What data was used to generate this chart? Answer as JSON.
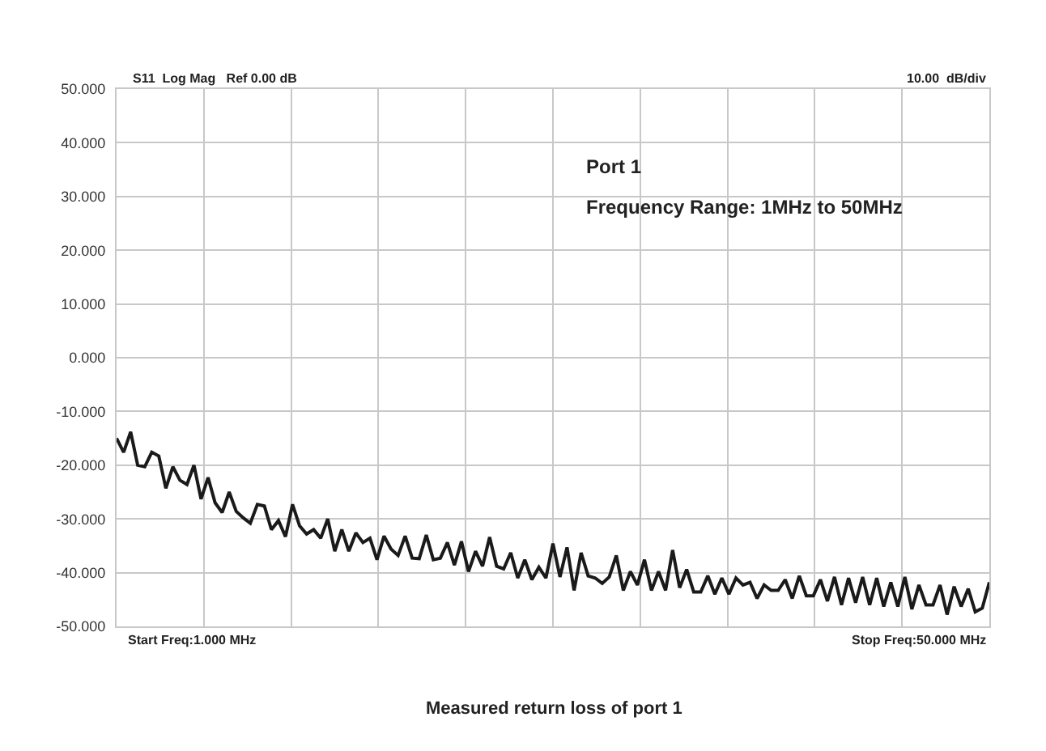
{
  "chart_data": {
    "type": "line",
    "annotations": [
      "S11  Log Mag   Ref 0.00 dB",
      "10.00  dB/div",
      "Port 1",
      "Frequency Range: 1MHz to 50MHz",
      "Start Freq:1.000 MHz",
      "Stop Freq:50.000 MHz",
      "Measured return loss of port 1"
    ],
    "categories": [
      null,
      null,
      null,
      null,
      null,
      null,
      null,
      null,
      null,
      null,
      null,
      null,
      null,
      null,
      null,
      null,
      null,
      null,
      null,
      null,
      null,
      null,
      null,
      null,
      null,
      null,
      null,
      null,
      null,
      null,
      null,
      null,
      null,
      null,
      null,
      null,
      null,
      null,
      null,
      null,
      null,
      null,
      null,
      null,
      null,
      null,
      null,
      null,
      null,
      null,
      null,
      null,
      null,
      null,
      null,
      null,
      null,
      null,
      null,
      null,
      null,
      null,
      null,
      null,
      null,
      null,
      null,
      null,
      null,
      null,
      null,
      null,
      null,
      null,
      null,
      null,
      null,
      null,
      null,
      null,
      null,
      null,
      null,
      null,
      null,
      null,
      null,
      null,
      null,
      null,
      null,
      null,
      null,
      null,
      null,
      null,
      null,
      null,
      null,
      null,
      null,
      null,
      null,
      null,
      null,
      null,
      null,
      null,
      null,
      null,
      null,
      null,
      null,
      null,
      null,
      null,
      null,
      null,
      null,
      null,
      null,
      null,
      null,
      null,
      null
    ],
    "ylim": [
      -50,
      50
    ],
    "yticks": [
      {
        "value": -50,
        "label": "-50.000"
      },
      {
        "value": -40,
        "label": "-40.000"
      },
      {
        "value": -30,
        "label": "-30.000"
      },
      {
        "value": -20,
        "label": "-20.000"
      },
      {
        "value": -10,
        "label": "-10.000"
      },
      {
        "value": 0,
        "label": "0.000"
      },
      {
        "value": 10,
        "label": "10.000"
      },
      {
        "value": 20,
        "label": "20.000"
      },
      {
        "value": 30,
        "label": "30.000"
      },
      {
        "value": 40,
        "label": "40.000"
      },
      {
        "value": 50,
        "label": "50.000"
      }
    ],
    "tick_labels": "y",
    "grid": true,
    "marker": "none",
    "line_style": "solid",
    "series": [
      {
        "color": "#1a1a1a",
        "values": [
          -15.0,
          -17.6,
          -13.8,
          -20,
          -20.3,
          -17.6,
          -18.3,
          -24.3,
          -20.3,
          -22.8,
          -23.6,
          -20,
          -26.3,
          -22.3,
          -27,
          -28.8,
          -25,
          -28.6,
          -29.8,
          -30.8,
          -27.3,
          -27.6,
          -32,
          -30.3,
          -33.3,
          -27.3,
          -31.3,
          -32.8,
          -32,
          -33.6,
          -30,
          -36,
          -32,
          -36,
          -32.6,
          -34.4,
          -33.6,
          -37.6,
          -33.2,
          -35.6,
          -36.8,
          -33.2,
          -37.3,
          -37.4,
          -33,
          -37.6,
          -37.3,
          -34.4,
          -38.6,
          -34.2,
          -39.8,
          -36,
          -38.8,
          -33.4,
          -38.8,
          -39.3,
          -36.3,
          -41,
          -37.6,
          -41.3,
          -39,
          -41,
          -34.6,
          -40.8,
          -35.3,
          -43.3,
          -36.3,
          -40.6,
          -41,
          -42,
          -40.8,
          -36.8,
          -43.3,
          -39.8,
          -42.3,
          -37.6,
          -43.3,
          -39.8,
          -43.3,
          -35.8,
          -42.8,
          -39.4,
          -43.6,
          -43.6,
          -40.6,
          -44,
          -41,
          -44,
          -41,
          -42.3,
          -41.8,
          -44.8,
          -42.3,
          -43.3,
          -43.3,
          -41.3,
          -44.8,
          -40.6,
          -44.3,
          -44.3,
          -41.3,
          -45.3,
          -40.8,
          -46,
          -41,
          -45.6,
          -40.8,
          -46,
          -41,
          -46.3,
          -41.8,
          -46.3,
          -40.8,
          -46.8,
          -42.3,
          -46,
          -46,
          -42.3,
          -47.8,
          -42.6,
          -46.3,
          -43,
          -47.3,
          -46.6,
          -41.8
        ]
      }
    ]
  }
}
